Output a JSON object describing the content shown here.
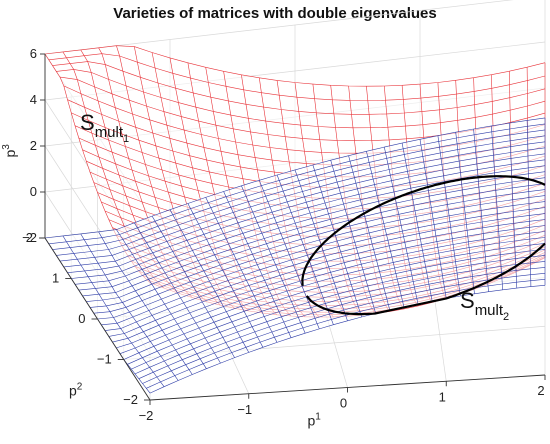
{
  "chart_data": {
    "type": "surface3d",
    "title": "Varieties of matrices with double eigenvalues",
    "xlabel": "p",
    "xlabel_sup": "1",
    "ylabel": "p",
    "ylabel_sup": "2",
    "zlabel": "p",
    "zlabel_sup": "3",
    "xlim": [
      -2,
      2
    ],
    "ylim": [
      -2,
      2
    ],
    "zlim": [
      -2,
      6
    ],
    "x_ticks": [
      "−2",
      "−1",
      "0",
      "1",
      "2"
    ],
    "y_ticks": [
      "−2",
      "−1",
      "0",
      "1",
      "2"
    ],
    "z_ticks": [
      "−2",
      "0",
      "2",
      "4",
      "6"
    ],
    "grid": true,
    "surfaces": [
      {
        "label_main": "S",
        "label_sub": "mult",
        "label_subsub": "1",
        "color": "#e8343a",
        "equation": "p3 = 0.5*p1^2 + 0.5*p2^2 - 0.6*p1 + 0.6*p2 - 0.3*p1*p2 + 0.3"
      },
      {
        "label_main": "S",
        "label_sub": "mult",
        "label_subsub": "2",
        "color": "#2f3ea8",
        "equation": "p3 = 0.9*p1 - 0.3*p2 - 0.2*p1^2 + 0.3"
      }
    ],
    "intersection_color": "#000000"
  }
}
